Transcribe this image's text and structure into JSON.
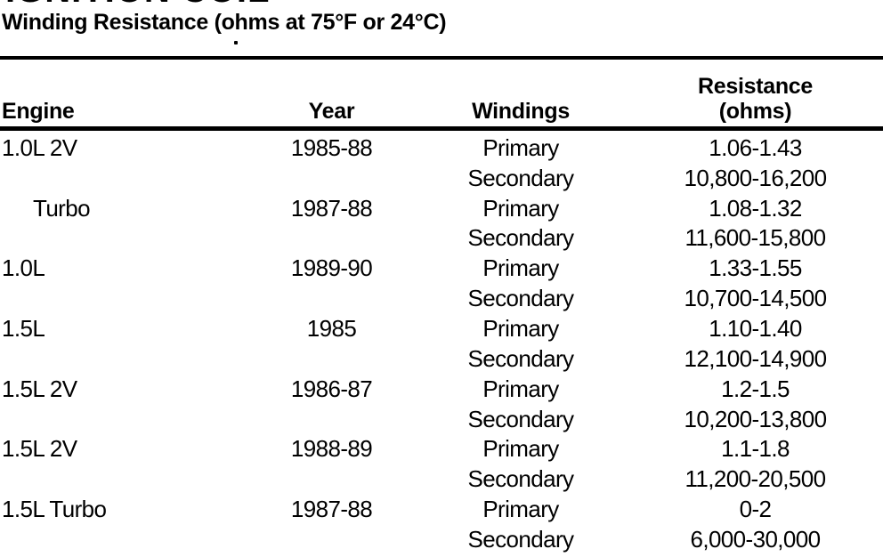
{
  "page": {
    "clipped_title": "IGNITION COIL",
    "subtitle": "Winding Resistance (ohms at 75°F or 24°C)"
  },
  "table": {
    "headers": {
      "engine": "Engine",
      "year": "Year",
      "windings": "Windings",
      "resistance_line1": "Resistance",
      "resistance_line2": "(ohms)"
    },
    "rows": [
      {
        "engine": "1.0L 2V",
        "indent": false,
        "year": "1985-88",
        "winding": "Primary",
        "resistance": "1.06-1.43"
      },
      {
        "engine": "",
        "indent": false,
        "year": "",
        "winding": "Secondary",
        "resistance": "10,800-16,200"
      },
      {
        "engine": "Turbo",
        "indent": true,
        "year": "1987-88",
        "winding": "Primary",
        "resistance": "1.08-1.32"
      },
      {
        "engine": "",
        "indent": false,
        "year": "",
        "winding": "Secondary",
        "resistance": "11,600-15,800"
      },
      {
        "engine": "1.0L",
        "indent": false,
        "year": "1989-90",
        "winding": "Primary",
        "resistance": "1.33-1.55"
      },
      {
        "engine": "",
        "indent": false,
        "year": "",
        "winding": "Secondary",
        "resistance": "10,700-14,500"
      },
      {
        "engine": "1.5L",
        "indent": false,
        "year": "1985",
        "winding": "Primary",
        "resistance": "1.10-1.40"
      },
      {
        "engine": "",
        "indent": false,
        "year": "",
        "winding": "Secondary",
        "resistance": "12,100-14,900"
      },
      {
        "engine": "1.5L 2V",
        "indent": false,
        "year": "1986-87",
        "winding": "Primary",
        "resistance": "1.2-1.5"
      },
      {
        "engine": "",
        "indent": false,
        "year": "",
        "winding": "Secondary",
        "resistance": "10,200-13,800"
      },
      {
        "engine": "1.5L 2V",
        "indent": false,
        "year": "1988-89",
        "winding": "Primary",
        "resistance": "1.1-1.8"
      },
      {
        "engine": "",
        "indent": false,
        "year": "",
        "winding": "Secondary",
        "resistance": "11,200-20,500"
      },
      {
        "engine": "1.5L Turbo",
        "indent": false,
        "year": "1987-88",
        "winding": "Primary",
        "resistance": "0-2"
      },
      {
        "engine": "",
        "indent": false,
        "year": "",
        "winding": "Secondary",
        "resistance": "6,000-30,000"
      }
    ]
  }
}
